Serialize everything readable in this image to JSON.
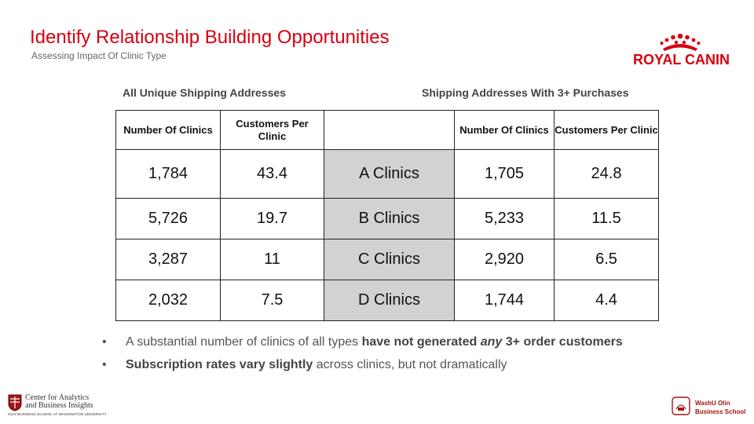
{
  "header": {
    "title": "Identify Relationship Building Opportunities",
    "subtitle": "Assessing Impact Of Clinic Type"
  },
  "logo": {
    "brand": "ROYAL CANIN",
    "icon": "crown-icon",
    "color": "#d6000f"
  },
  "groups": {
    "left": "All Unique Shipping Addresses",
    "right": "Shipping Addresses With 3+ Purchases"
  },
  "table": {
    "headers": [
      "Number Of Clinics",
      "Customers Per Clinic",
      "",
      "Number Of Clinics",
      "Customers Per Clinic"
    ],
    "rows": [
      {
        "clinics_all": "1,784",
        "cpc_all": "43.4",
        "type": "A Clinics",
        "clinics_3p": "1,705",
        "cpc_3p": "24.8"
      },
      {
        "clinics_all": "5,726",
        "cpc_all": "19.7",
        "type": "B Clinics",
        "clinics_3p": "5,233",
        "cpc_3p": "11.5"
      },
      {
        "clinics_all": "3,287",
        "cpc_all": "11",
        "type": "C Clinics",
        "clinics_3p": "2,920",
        "cpc_3p": "6.5"
      },
      {
        "clinics_all": "2,032",
        "cpc_all": "7.5",
        "type": "D Clinics",
        "clinics_3p": "1,744",
        "cpc_3p": "4.4"
      }
    ]
  },
  "bullets": [
    {
      "pre": "A substantial number of clinics of all types ",
      "bold": "have not generated ",
      "bold_italic": "any",
      "bold_post": " 3+ order customers",
      "post": ""
    },
    {
      "pre": "",
      "bold": "Subscription rates vary slightly",
      "bold_italic": "",
      "bold_post": "",
      "post": " across clinics, but not dramatically"
    }
  ],
  "footer": {
    "left_line1": "Center for Analytics",
    "left_line2": "and Business Insights",
    "left_small": "OLIN BUSINESS SCHOOL AT WASHINGTON UNIVERSITY",
    "right_line1": "WashU Olin",
    "right_line2": "Business School"
  },
  "colors": {
    "accent": "#d6000f",
    "type_cell": "#d3d1d1",
    "olin_red": "#a51417"
  }
}
